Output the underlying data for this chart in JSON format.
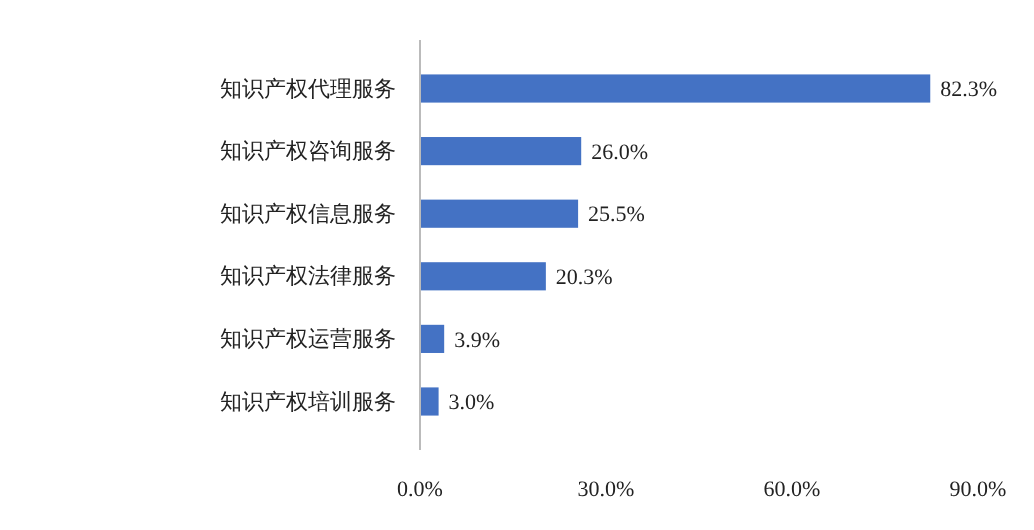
{
  "chart_data": {
    "type": "bar",
    "orientation": "horizontal",
    "categories": [
      "知识产权代理服务",
      "知识产权咨询服务",
      "知识产权信息服务",
      "知识产权法律服务",
      "知识产权运营服务",
      "知识产权培训服务"
    ],
    "values": [
      82.3,
      26.0,
      25.5,
      20.3,
      3.9,
      3.0
    ],
    "value_labels": [
      "82.3%",
      "26.0%",
      "25.5%",
      "20.3%",
      "3.9%",
      "3.0%"
    ],
    "color": "#4472c4",
    "xlim": [
      0,
      90
    ],
    "xticks": [
      {
        "value": 0,
        "label": "0.0%"
      },
      {
        "value": 30,
        "label": "30.0%"
      },
      {
        "value": 60,
        "label": "60.0%"
      },
      {
        "value": 90,
        "label": "90.0%"
      }
    ],
    "grid": false
  }
}
